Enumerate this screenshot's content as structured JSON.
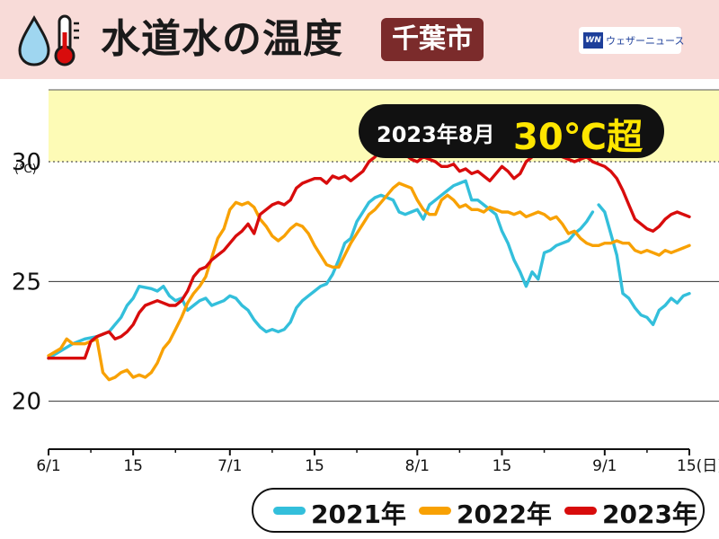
{
  "header": {
    "title": "水道水の温度",
    "city": "千葉市",
    "logo_mark": "WN",
    "logo_text": "ウェザーニュース",
    "icons": [
      "water-drop-icon",
      "thermometer-icon"
    ],
    "bg_color": "#f8dbd8",
    "badge_color": "#7b2b2b"
  },
  "callout": {
    "date_text": "2023年8月",
    "emphasis_text": "30℃超"
  },
  "chart_data": {
    "type": "line",
    "title": "水道水の温度",
    "ylabel": "(℃)",
    "xlabel": "",
    "ylim": [
      18,
      33
    ],
    "yticks": [
      20,
      25,
      30
    ],
    "xlim": [
      0,
      106
    ],
    "xticks": [
      {
        "pos": 0,
        "label": "6/1"
      },
      {
        "pos": 14,
        "label": "15"
      },
      {
        "pos": 30,
        "label": "7/1"
      },
      {
        "pos": 44,
        "label": "15"
      },
      {
        "pos": 61,
        "label": "8/1"
      },
      {
        "pos": 75,
        "label": "15"
      },
      {
        "pos": 92,
        "label": "9/1"
      },
      {
        "pos": 106,
        "label": "15(日)"
      }
    ],
    "threshold": {
      "value": 30,
      "color": "#fdfbb6",
      "range": [
        30,
        33
      ]
    },
    "grid": true,
    "series": [
      {
        "name": "2021年",
        "color": "#33bfdb",
        "points": [
          [
            0,
            21.8
          ],
          [
            2,
            22.1
          ],
          [
            4,
            22.4
          ],
          [
            6,
            22.6
          ],
          [
            8,
            22.7
          ],
          [
            10,
            22.9
          ],
          [
            12,
            23.5
          ],
          [
            13,
            24.0
          ],
          [
            14,
            24.3
          ],
          [
            15,
            24.8
          ],
          [
            17,
            24.7
          ],
          [
            18,
            24.6
          ],
          [
            19,
            24.8
          ],
          [
            20,
            24.4
          ],
          [
            21,
            24.2
          ],
          [
            22,
            24.3
          ],
          [
            23,
            23.8
          ],
          [
            24,
            24.0
          ],
          [
            25,
            24.2
          ],
          [
            26,
            24.3
          ],
          [
            27,
            24.0
          ],
          [
            28,
            24.1
          ],
          [
            29,
            24.2
          ],
          [
            30,
            24.4
          ],
          [
            31,
            24.3
          ],
          [
            32,
            24.0
          ],
          [
            33,
            23.8
          ],
          [
            34,
            23.4
          ],
          [
            35,
            23.1
          ],
          [
            36,
            22.9
          ],
          [
            37,
            23.0
          ],
          [
            38,
            22.9
          ],
          [
            39,
            23.0
          ],
          [
            40,
            23.3
          ],
          [
            41,
            23.9
          ],
          [
            42,
            24.2
          ],
          [
            43,
            24.4
          ],
          [
            44,
            24.6
          ],
          [
            45,
            24.8
          ],
          [
            46,
            24.9
          ],
          [
            47,
            25.3
          ],
          [
            48,
            25.9
          ],
          [
            49,
            26.6
          ],
          [
            50,
            26.8
          ],
          [
            51,
            27.5
          ],
          [
            52,
            27.9
          ],
          [
            53,
            28.3
          ],
          [
            54,
            28.5
          ],
          [
            55,
            28.6
          ],
          [
            56,
            28.5
          ],
          [
            57,
            28.4
          ],
          [
            58,
            27.9
          ],
          [
            59,
            27.8
          ],
          [
            60,
            27.9
          ],
          [
            61,
            28.0
          ],
          [
            62,
            27.6
          ],
          [
            63,
            28.2
          ],
          [
            64,
            28.4
          ],
          [
            65,
            28.6
          ],
          [
            66,
            28.8
          ],
          [
            67,
            29.0
          ],
          [
            68,
            29.1
          ],
          [
            69,
            29.2
          ],
          [
            70,
            28.4
          ],
          [
            71,
            28.4
          ],
          [
            72,
            28.2
          ],
          [
            73,
            28.0
          ],
          [
            74,
            27.8
          ],
          [
            75,
            27.1
          ],
          [
            76,
            26.6
          ],
          [
            77,
            25.9
          ],
          [
            78,
            25.4
          ],
          [
            79,
            24.8
          ],
          [
            80,
            25.4
          ],
          [
            81,
            25.1
          ],
          [
            82,
            26.2
          ],
          [
            83,
            26.3
          ],
          [
            84,
            26.5
          ],
          [
            85,
            26.6
          ],
          [
            86,
            26.7
          ],
          [
            87,
            27.0
          ],
          [
            88,
            27.2
          ],
          [
            89,
            27.5
          ],
          [
            90,
            27.9
          ],
          null,
          [
            91,
            28.2
          ],
          [
            92,
            27.9
          ],
          [
            93,
            27.0
          ],
          [
            94,
            26.1
          ],
          [
            95,
            24.5
          ],
          [
            96,
            24.3
          ],
          [
            97,
            23.9
          ],
          [
            98,
            23.6
          ],
          [
            99,
            23.5
          ],
          [
            100,
            23.2
          ],
          [
            101,
            23.8
          ],
          [
            102,
            24.0
          ],
          [
            103,
            24.3
          ],
          [
            104,
            24.1
          ],
          [
            105,
            24.4
          ],
          [
            106,
            24.5
          ]
        ]
      },
      {
        "name": "2022年",
        "color": "#f8a103",
        "points": [
          [
            0,
            21.9
          ],
          [
            2,
            22.2
          ],
          [
            3,
            22.6
          ],
          [
            4,
            22.4
          ],
          [
            6,
            22.4
          ],
          [
            8,
            22.6
          ],
          [
            9,
            21.2
          ],
          [
            10,
            20.9
          ],
          [
            11,
            21.0
          ],
          [
            12,
            21.2
          ],
          [
            13,
            21.3
          ],
          [
            14,
            21.0
          ],
          [
            15,
            21.1
          ],
          [
            16,
            21.0
          ],
          [
            17,
            21.2
          ],
          [
            18,
            21.6
          ],
          [
            19,
            22.2
          ],
          [
            20,
            22.5
          ],
          [
            21,
            23.0
          ],
          [
            22,
            23.5
          ],
          [
            23,
            24.1
          ],
          [
            24,
            24.5
          ],
          [
            25,
            24.8
          ],
          [
            26,
            25.2
          ],
          [
            27,
            26.0
          ],
          [
            28,
            26.8
          ],
          [
            29,
            27.2
          ],
          [
            30,
            28.0
          ],
          [
            31,
            28.3
          ],
          [
            32,
            28.2
          ],
          [
            33,
            28.3
          ],
          [
            34,
            28.1
          ],
          [
            35,
            27.6
          ],
          [
            36,
            27.3
          ],
          [
            37,
            26.9
          ],
          [
            38,
            26.7
          ],
          [
            39,
            26.9
          ],
          [
            40,
            27.2
          ],
          [
            41,
            27.4
          ],
          [
            42,
            27.3
          ],
          [
            43,
            27.0
          ],
          [
            44,
            26.5
          ],
          [
            45,
            26.1
          ],
          [
            46,
            25.7
          ],
          [
            47,
            25.6
          ],
          [
            48,
            25.6
          ],
          [
            49,
            26.1
          ],
          [
            50,
            26.6
          ],
          [
            51,
            27.0
          ],
          [
            52,
            27.4
          ],
          [
            53,
            27.8
          ],
          [
            54,
            28.0
          ],
          [
            55,
            28.3
          ],
          [
            56,
            28.6
          ],
          [
            57,
            28.9
          ],
          [
            58,
            29.1
          ],
          [
            59,
            29.0
          ],
          [
            60,
            28.9
          ],
          [
            61,
            28.4
          ],
          [
            62,
            28.0
          ],
          [
            63,
            27.8
          ],
          [
            64,
            27.8
          ],
          [
            65,
            28.4
          ],
          [
            66,
            28.6
          ],
          [
            67,
            28.4
          ],
          [
            68,
            28.1
          ],
          [
            69,
            28.2
          ],
          [
            70,
            28.0
          ],
          [
            71,
            28.0
          ],
          [
            72,
            27.9
          ],
          [
            73,
            28.1
          ],
          [
            74,
            28.0
          ],
          [
            75,
            27.9
          ],
          [
            76,
            27.9
          ],
          [
            77,
            27.8
          ],
          [
            78,
            27.9
          ],
          [
            79,
            27.7
          ],
          [
            80,
            27.8
          ],
          [
            81,
            27.9
          ],
          [
            82,
            27.8
          ],
          [
            83,
            27.6
          ],
          [
            84,
            27.7
          ],
          [
            85,
            27.4
          ],
          [
            86,
            27.0
          ],
          [
            87,
            27.1
          ],
          [
            88,
            26.8
          ],
          [
            89,
            26.6
          ],
          [
            90,
            26.5
          ],
          [
            91,
            26.5
          ],
          [
            92,
            26.6
          ],
          [
            93,
            26.6
          ],
          [
            94,
            26.7
          ],
          [
            95,
            26.6
          ],
          [
            96,
            26.6
          ],
          [
            97,
            26.3
          ],
          [
            98,
            26.2
          ],
          [
            99,
            26.3
          ],
          [
            100,
            26.2
          ],
          [
            101,
            26.1
          ],
          [
            102,
            26.3
          ],
          [
            103,
            26.2
          ],
          [
            104,
            26.3
          ],
          [
            105,
            26.4
          ],
          [
            106,
            26.5
          ]
        ]
      },
      {
        "name": "2023年",
        "color": "#d80c0c",
        "points": [
          [
            0,
            21.8
          ],
          [
            2,
            21.8
          ],
          [
            4,
            21.8
          ],
          [
            6,
            21.8
          ],
          [
            7,
            22.5
          ],
          [
            8,
            22.7
          ],
          [
            9,
            22.8
          ],
          [
            10,
            22.9
          ],
          [
            11,
            22.6
          ],
          [
            12,
            22.7
          ],
          [
            13,
            22.9
          ],
          [
            14,
            23.2
          ],
          [
            15,
            23.7
          ],
          [
            16,
            24.0
          ],
          [
            17,
            24.1
          ],
          [
            18,
            24.2
          ],
          [
            19,
            24.1
          ],
          [
            20,
            24.0
          ],
          [
            21,
            24.0
          ],
          [
            22,
            24.2
          ],
          [
            23,
            24.6
          ],
          [
            24,
            25.2
          ],
          [
            25,
            25.5
          ],
          [
            26,
            25.6
          ],
          [
            27,
            25.9
          ],
          [
            28,
            26.1
          ],
          [
            29,
            26.3
          ],
          [
            30,
            26.6
          ],
          [
            31,
            26.9
          ],
          [
            32,
            27.1
          ],
          [
            33,
            27.4
          ],
          [
            34,
            27.0
          ],
          [
            35,
            27.8
          ],
          [
            36,
            28.0
          ],
          [
            37,
            28.2
          ],
          [
            38,
            28.3
          ],
          [
            39,
            28.2
          ],
          [
            40,
            28.4
          ],
          [
            41,
            28.9
          ],
          [
            42,
            29.1
          ],
          [
            43,
            29.2
          ],
          [
            44,
            29.3
          ],
          [
            45,
            29.3
          ],
          [
            46,
            29.1
          ],
          [
            47,
            29.4
          ],
          [
            48,
            29.3
          ],
          [
            49,
            29.4
          ],
          [
            50,
            29.2
          ],
          [
            51,
            29.4
          ],
          [
            52,
            29.6
          ],
          [
            53,
            30.0
          ],
          [
            54,
            30.2
          ],
          [
            55,
            30.5
          ],
          [
            56,
            30.4
          ],
          [
            57,
            30.6
          ],
          [
            58,
            30.5
          ],
          [
            59,
            30.3
          ],
          [
            60,
            30.1
          ],
          [
            61,
            30.0
          ],
          [
            62,
            30.2
          ],
          [
            63,
            30.1
          ],
          [
            64,
            30.0
          ],
          [
            65,
            29.8
          ],
          [
            66,
            29.8
          ],
          [
            67,
            29.9
          ],
          [
            68,
            29.6
          ],
          [
            69,
            29.7
          ],
          [
            70,
            29.5
          ],
          [
            71,
            29.6
          ],
          [
            72,
            29.4
          ],
          [
            73,
            29.2
          ],
          [
            74,
            29.5
          ],
          [
            75,
            29.8
          ],
          [
            76,
            29.6
          ],
          [
            77,
            29.3
          ],
          [
            78,
            29.5
          ],
          [
            79,
            30.0
          ],
          [
            80,
            30.2
          ],
          [
            81,
            30.5
          ],
          [
            82,
            30.6
          ],
          [
            83,
            30.4
          ],
          [
            84,
            30.3
          ],
          [
            85,
            30.2
          ],
          [
            86,
            30.1
          ],
          [
            87,
            30.0
          ],
          [
            88,
            30.1
          ],
          [
            89,
            30.2
          ],
          [
            90,
            30.0
          ],
          [
            91,
            29.9
          ],
          [
            92,
            29.8
          ],
          [
            93,
            29.6
          ],
          [
            94,
            29.3
          ],
          [
            95,
            28.8
          ],
          [
            96,
            28.2
          ],
          [
            97,
            27.6
          ],
          [
            98,
            27.4
          ],
          [
            99,
            27.2
          ],
          [
            100,
            27.1
          ],
          [
            101,
            27.3
          ],
          [
            102,
            27.6
          ],
          [
            103,
            27.8
          ],
          [
            104,
            27.9
          ],
          [
            105,
            27.8
          ],
          [
            106,
            27.7
          ]
        ]
      }
    ]
  }
}
